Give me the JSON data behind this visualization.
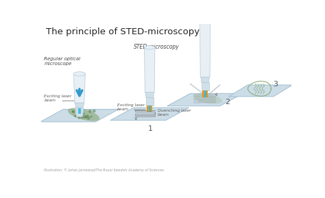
{
  "title": "The principle of STED-microscopy",
  "title_fontsize": 9.5,
  "bg_color": "#ffffff",
  "label1": "Regular optical\nmicroscope",
  "label2": "STED-microscopy",
  "label_num1": "1",
  "label_num2": "2",
  "label_num3": "3",
  "exciting_beam": "Exciting laser\nbeam",
  "quenching_beam": "Quenching laser\nbeam",
  "footer": "Illustration: © Johan Jarnestad/The Royal Swedish Academy of Sciences",
  "platform_color": "#ccdde8",
  "platform_edge": "#9ab8cc",
  "green_blob": "#8aaa78",
  "cyan_beam": "#33bbdd",
  "orange_beam": "#e8921a",
  "scope_body_light": "#e8f0f5",
  "scope_body_mid": "#d0dfe8",
  "scope_edge": "#b0c8d8",
  "arrow_color": "#3399cc",
  "text_color": "#222222",
  "annotation_color": "#555555",
  "label_color": "#444444"
}
